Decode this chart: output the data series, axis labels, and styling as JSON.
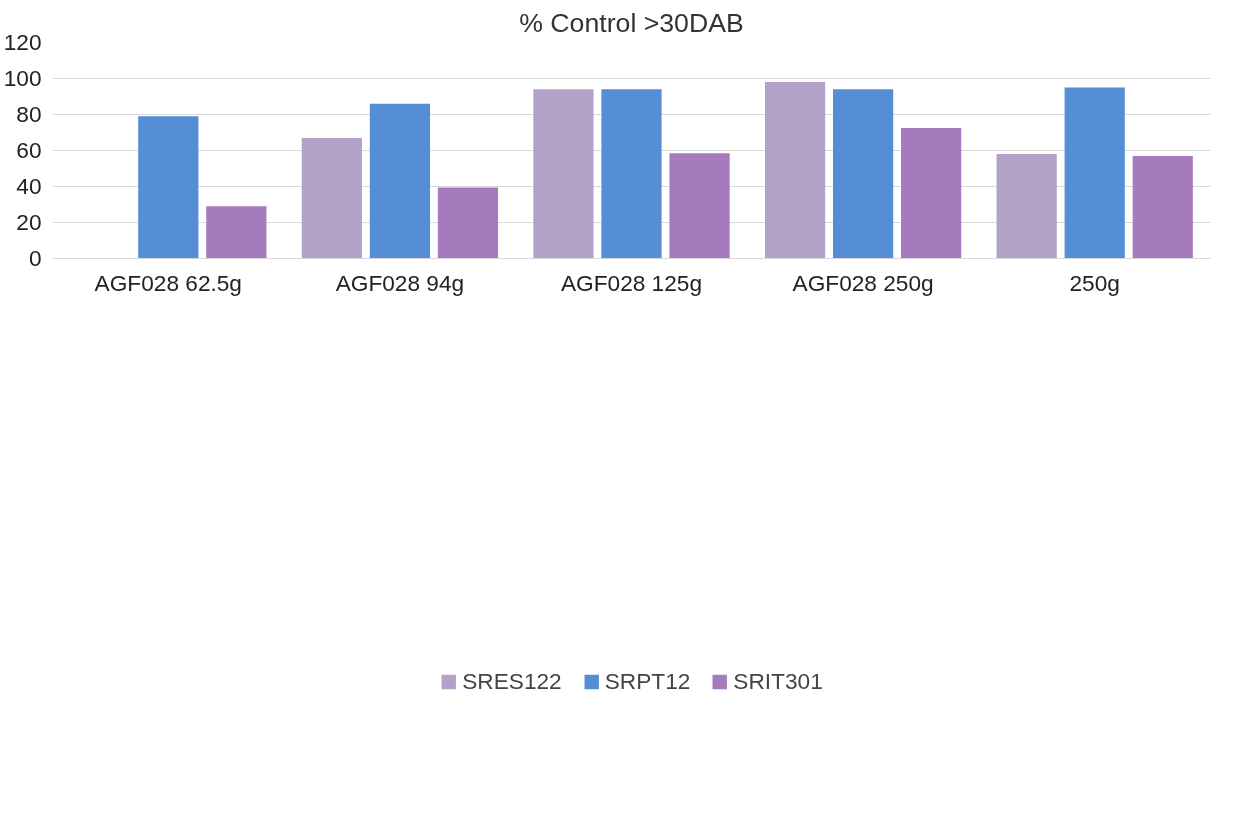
{
  "chart_data": {
    "type": "bar",
    "title": "% Control >30DAB",
    "categories": [
      "AGF028 62.5g",
      "AGF028 94g",
      "AGF028 125g",
      "AGF028 250g",
      "250g"
    ],
    "series": [
      {
        "name": "SRES122",
        "color": "#b3a2c8",
        "values": [
          null,
          67,
          94,
          98,
          58
        ]
      },
      {
        "name": "SRPT12",
        "color": "#558ed5",
        "values": [
          79,
          86,
          94,
          94,
          95
        ]
      },
      {
        "name": "SRIT301",
        "color": "#a57bbd",
        "values": [
          29,
          39.5,
          58.5,
          72.5,
          57
        ]
      }
    ],
    "ylim": [
      0,
      120
    ],
    "yticks": [
      0,
      20,
      40,
      60,
      80,
      100,
      120
    ],
    "grid": "y",
    "legend": "bottom"
  }
}
